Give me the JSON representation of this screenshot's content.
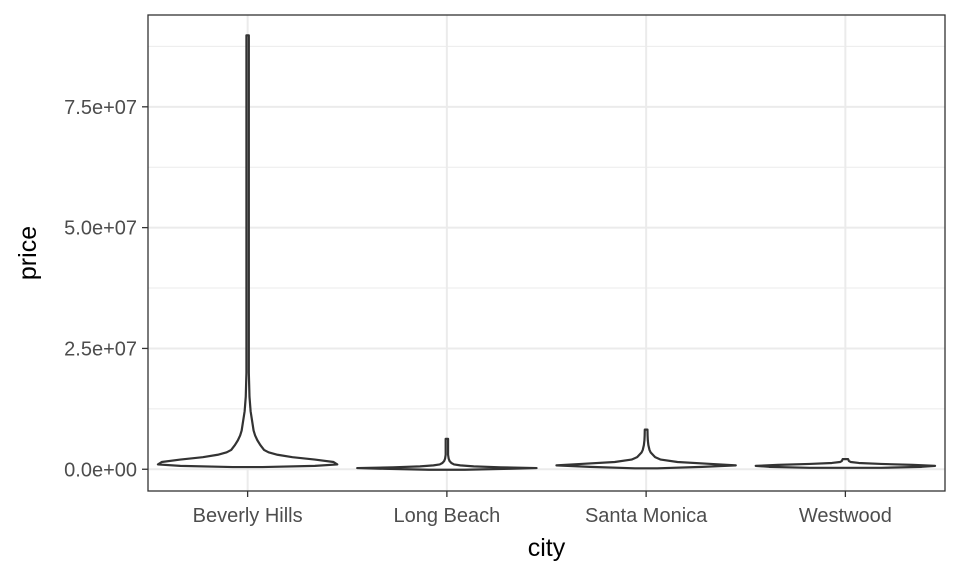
{
  "chart_data": {
    "type": "violin",
    "title": "",
    "xlabel": "city",
    "ylabel": "price",
    "categories": [
      "Beverly Hills",
      "Long Beach",
      "Santa Monica",
      "Westwood"
    ],
    "y_ticks": [
      {
        "value": 0,
        "label": "0.0e+00"
      },
      {
        "value": 25000000,
        "label": "2.5e+07"
      },
      {
        "value": 50000000,
        "label": "5.0e+07"
      },
      {
        "value": 75000000,
        "label": "7.5e+07"
      }
    ],
    "ylim": [
      -4500000,
      94000000
    ],
    "grid": true,
    "series": [
      {
        "category": "Beverly Hills",
        "min": 450000,
        "max": 89800000,
        "profile": [
          [
            450000,
            0.02
          ],
          [
            700000,
            0.09
          ],
          [
            1000000,
            0.12
          ],
          [
            1500000,
            0.115
          ],
          [
            2000000,
            0.09
          ],
          [
            2500000,
            0.06
          ],
          [
            3000000,
            0.04
          ],
          [
            3500000,
            0.028
          ],
          [
            4000000,
            0.022
          ],
          [
            5000000,
            0.017
          ],
          [
            6000000,
            0.013
          ],
          [
            7000000,
            0.01
          ],
          [
            8000000,
            0.008
          ],
          [
            10000000,
            0.006
          ],
          [
            12000000,
            0.004
          ],
          [
            15000000,
            0.0025
          ],
          [
            20000000,
            0.0015
          ],
          [
            30000000,
            0.001
          ],
          [
            50000000,
            0.001
          ],
          [
            89800000,
            0.001
          ]
        ]
      },
      {
        "category": "Long Beach",
        "min": -100000,
        "max": 6300000,
        "profile": [
          [
            -100000,
            0.2
          ],
          [
            100000,
            0.7
          ],
          [
            250000,
            1.0
          ],
          [
            400000,
            0.6
          ],
          [
            600000,
            0.3
          ],
          [
            800000,
            0.15
          ],
          [
            1000000,
            0.08
          ],
          [
            1300000,
            0.05
          ],
          [
            1700000,
            0.03
          ],
          [
            2200000,
            0.02
          ],
          [
            3000000,
            0.012
          ],
          [
            4000000,
            0.008
          ],
          [
            5000000,
            0.005
          ],
          [
            6300000,
            0.004
          ]
        ]
      },
      {
        "category": "Santa Monica",
        "min": 200000,
        "max": 8200000,
        "profile": [
          [
            200000,
            0.1
          ],
          [
            500000,
            0.5
          ],
          [
            800000,
            0.8
          ],
          [
            1100000,
            0.58
          ],
          [
            1500000,
            0.28
          ],
          [
            2000000,
            0.13
          ],
          [
            2500000,
            0.08
          ],
          [
            3000000,
            0.06
          ],
          [
            3500000,
            0.04
          ],
          [
            4000000,
            0.03
          ],
          [
            5000000,
            0.02
          ],
          [
            6000000,
            0.015
          ],
          [
            7000000,
            0.013
          ],
          [
            8200000,
            0.012
          ]
        ]
      },
      {
        "category": "Westwood",
        "min": 300000,
        "max": 2100000,
        "profile": [
          [
            300000,
            0.4
          ],
          [
            500000,
            0.85
          ],
          [
            700000,
            1.0
          ],
          [
            900000,
            0.75
          ],
          [
            1100000,
            0.4
          ],
          [
            1300000,
            0.15
          ],
          [
            1500000,
            0.06
          ],
          [
            1700000,
            0.04
          ],
          [
            1900000,
            0.035
          ],
          [
            2100000,
            0.03
          ]
        ]
      }
    ]
  }
}
